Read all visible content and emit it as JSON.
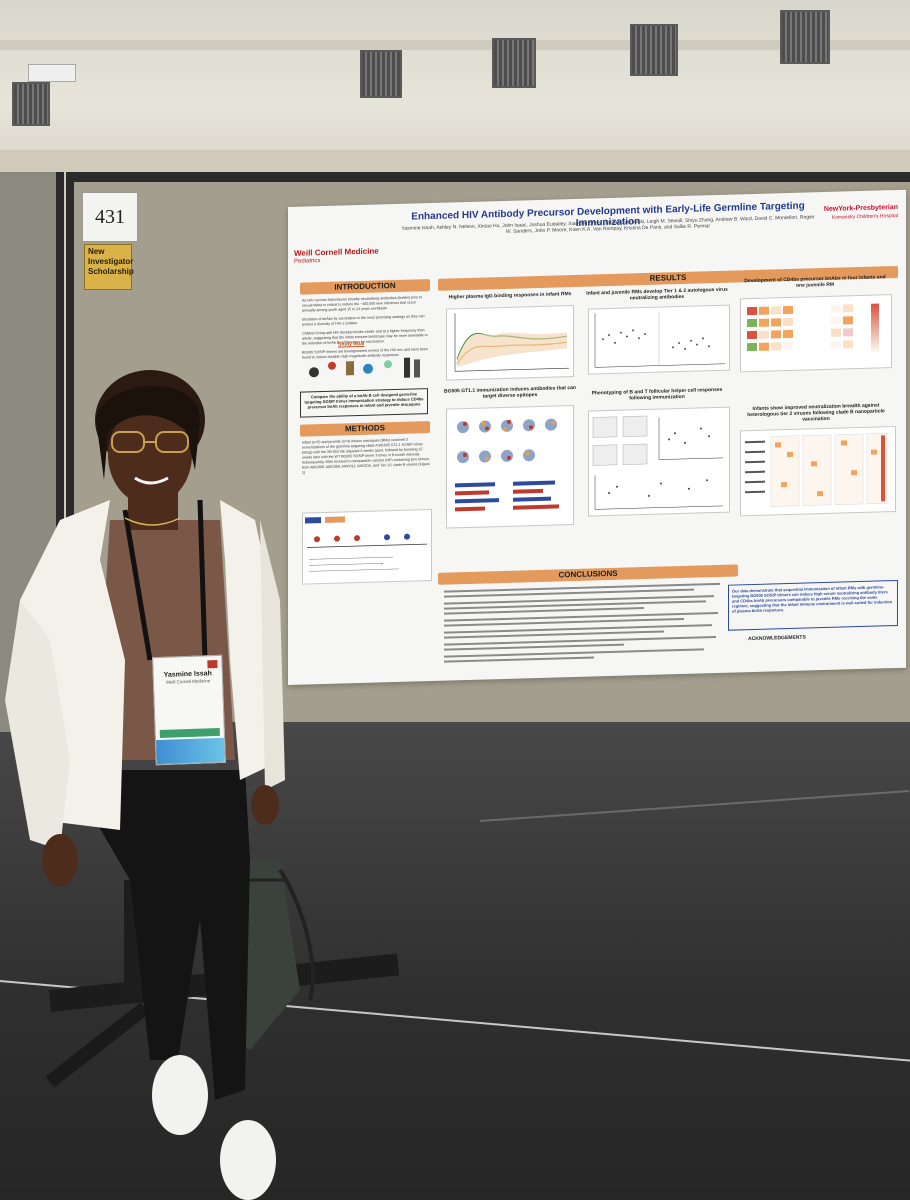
{
  "booth": {
    "number": "431",
    "award_label": "New Investigator Scholarship"
  },
  "poster": {
    "title": "Enhanced HIV Antibody Precursor Development with Early-Life Germline Targeting Immunization",
    "authors": "Yasmine Issah, Ashley N. Nelson, Xintao Hu, John Isaac, Joshua Eudailey, Xiaoying Shen, Gabriel Ozorowski, Leigh M. Sewall, Shiyu Zhang, Andrew B. Ward, David C. Montefiori, Rogier W. Sanders, John P. Moore, Koen K.A. Van Rompay, Kristina De Paris, and Sallie R. Permar",
    "logo_left": "Weill Cornell Medicine",
    "logo_left_sub": "Pediatrics",
    "logo_right": "NewYork-Presbyterian",
    "logo_right_sub": "Komansky Children's Hospital",
    "sections": {
      "introduction": "INTRODUCTION",
      "methods": "METHODS",
      "results": "RESULTS",
      "conclusions": "CONCLUSIONS",
      "acknowledgements": "ACKNOWLEDGEMENTS"
    },
    "intro_paragraphs": [
      "An HIV vaccine that induces broadly neutralizing antibodies (bnAbs) prior to sexual debut is critical to reduce the ~400,000 new infections that occur annually among youth aged 15 to 24 years worldwide",
      "Elicitation of bnAbs by vaccination is the most promising strategy as they can protect a diversity of HIV-1 isolates",
      "Children living with HIV develop bnAbs earlier and at a higher frequency than adults, suggesting that the infant immune landscape may be more amenable to the induction of bnAb B cell lineages by vaccination.",
      "BG505 SOSIP trimers are bioengineered mimics of the HIV env and have been found to induce durable, high-magnitude antibody responses"
    ],
    "study_goal_label": "Study Goal",
    "study_goal_text": "Compare the ability of a bnAb B cell designed germ-line targeting SOSIP trimer immunization strategy to induce CD4bs precursor bnAb responses in infant and juvenile macaques",
    "methods_text": "Infant (n=5) and juvenile (n=4) rhesus macaques (RMs) received 3 immunizations of the germline-targeting clade A BG505 GT1.1 SOSIP trimer (50ug) with the 3M-052-SE adjuvant 6 weeks apart, followed by boosting 15 weeks later with the WT BG505 SOSIP trimer 3 times in 8-month intervals. Subsequently, RMs received a nanoparticle vaccine (NP) containing Env trimers from AMC008, AMC009, AMC011, AMC016, and Tier 1/1 clade B viruses (Figure 1)",
    "result_panels": [
      "Higher plasma IgG binding responses in infant RMs",
      "Infant and juvenile RMs develop Tier 1 & 2 autologous virus neutralizing antibodies",
      "Development of CD4bs precursor bnAbs in four infants and one juvenile RM",
      "BG505 GT1.1 immunization induces antibodies that can target diverse epitopes",
      "Phenotyping of B and T follicular helper cell responses following immunization",
      "Infants show improved neutralization breadth against heterologous tier 2 viruses following clade B nanoparticle vaccination"
    ],
    "summary_text": "Our data demonstrate that sequential immunization of infant RMs with germline-targeting BG505 SOSIP trimers can induce high serum neutralizing antibody titers and CD4bs bnAb precursors comparable to juvenile RMs receiving the same regimen, suggesting that the infant immune environment is well-suited for induction of plasma bnAb responses."
  },
  "badge": {
    "name": "Yasmine Issah",
    "org": "Weill Cornell Medicine"
  },
  "colors": {
    "poster_accent": "#e39a5c",
    "title_blue": "#223a8c",
    "brand_red": "#b31b1b",
    "blazer": "#f3f1ea",
    "top": "#7a5746"
  }
}
